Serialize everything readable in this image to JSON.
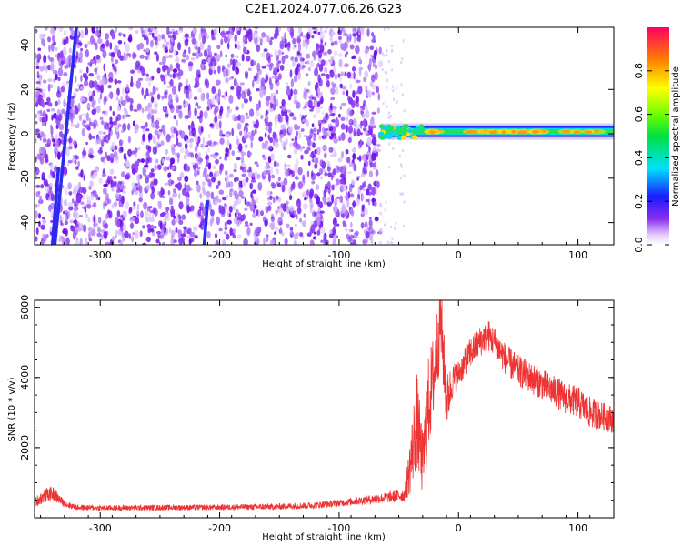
{
  "title": "C2E1.2024.077.06.26.G23",
  "chart_data": [
    {
      "type": "heatmap",
      "xlabel": "Height of straight line (km)",
      "ylabel": "Frequency (Hz)",
      "xlim": [
        -355,
        130
      ],
      "ylim": [
        -50,
        48
      ],
      "x_ticks": [
        -300,
        -200,
        -100,
        0,
        100
      ],
      "y_ticks": [
        -40,
        -20,
        0,
        20,
        40
      ],
      "colorbar": {
        "label": "Normalized spectral amplitude",
        "ticks": [
          0.0,
          0.2,
          0.4,
          0.6,
          0.8
        ],
        "range": [
          0,
          1
        ]
      },
      "regions": [
        {
          "name": "noise",
          "x_range": [
            -355,
            -65
          ],
          "freq_range": [
            -50,
            48
          ],
          "amplitude": 0.15
        },
        {
          "name": "signal",
          "x_range": [
            -65,
            130
          ],
          "center_freq": 1,
          "amplitude_peak": 0.95
        }
      ],
      "tracks": [
        {
          "x_start": -338,
          "x_end": -320,
          "freq_start": -50,
          "freq_end": 48
        },
        {
          "x_start": -340,
          "x_end": -335,
          "freq_start": -50,
          "freq_end": -15
        },
        {
          "x_start": -213,
          "x_end": -210,
          "freq_start": -50,
          "freq_end": -30
        }
      ],
      "colors": {
        "noise": "#7a1ff0",
        "signal": "#e8385a"
      }
    },
    {
      "type": "line",
      "xlabel": "Height of straight line (km)",
      "ylabel": "SNR (10 * v/v)",
      "xlim": [
        -355,
        130
      ],
      "ylim": [
        0,
        6200
      ],
      "x_ticks": [
        -300,
        -200,
        -100,
        0,
        100
      ],
      "y_ticks": [
        2000,
        4000,
        6000
      ],
      "series": [
        {
          "color": "#ee3333",
          "x": [
            -355,
            -345,
            -340,
            -330,
            -320,
            -300,
            -250,
            -200,
            -150,
            -120,
            -100,
            -80,
            -60,
            -45,
            -40,
            -35,
            -30,
            -25,
            -20,
            -15,
            -10,
            -5,
            0,
            10,
            20,
            25,
            30,
            40,
            50,
            60,
            70,
            80,
            90,
            100,
            110,
            120,
            130
          ],
          "values": [
            450,
            650,
            700,
            400,
            300,
            280,
            290,
            300,
            320,
            360,
            420,
            500,
            580,
            650,
            1600,
            2800,
            1500,
            3300,
            4200,
            5700,
            3300,
            3900,
            4100,
            4700,
            5100,
            5200,
            5000,
            4500,
            4200,
            4000,
            3800,
            3600,
            3400,
            3300,
            3000,
            2900,
            2800
          ],
          "spread": [
            150,
            200,
            200,
            100,
            80,
            80,
            80,
            80,
            90,
            100,
            100,
            120,
            150,
            200,
            900,
            1400,
            900,
            1400,
            1200,
            1200,
            800,
            500,
            400,
            450,
            450,
            450,
            450,
            450,
            450,
            450,
            450,
            450,
            450,
            450,
            450,
            400,
            400
          ]
        }
      ]
    }
  ]
}
